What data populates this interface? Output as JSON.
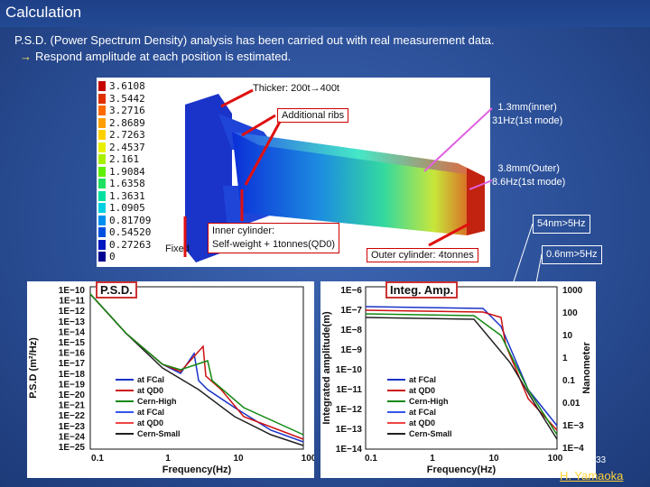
{
  "slide": {
    "title": "Calculation",
    "desc_line1": "P.S.D. (Power Spectrum Density) analysis has been carried out with real measurement data.",
    "desc_arrow": "→",
    "desc_line2": "Respond amplitude at each position is estimated.",
    "page_number": "33",
    "author": "H. Yamaoka"
  },
  "fem": {
    "legend_values": [
      "3.6108",
      "3.5442",
      "3.2716",
      "2.8689",
      "2.7263",
      "2.4537",
      "2.161",
      "1.9084",
      "1.6358",
      "1.3631",
      "1.0905",
      "0.81709",
      "0.54520",
      "0.27263",
      "0"
    ],
    "legend_colors": [
      "#c40000",
      "#e03000",
      "#ff6a00",
      "#ff9e00",
      "#ffd000",
      "#e8f000",
      "#a8f000",
      "#5ef000",
      "#20e060",
      "#00e0a0",
      "#00d0e0",
      "#0090f0",
      "#0050e0",
      "#0018c0",
      "#000090"
    ],
    "label_thicker": "Thicker: 200t→400t",
    "label_ribs": "Additional ribs",
    "label_inner_cyl_1": "Inner cylinder:",
    "label_inner_cyl_2": "Self-weight + 1tonnes(QD0)",
    "label_outer_cyl": "Outer cylinder: 4tonnes",
    "label_fixed": "Fixed",
    "callout_inner": "1.3mm(inner)\n31Hz(1st mode)",
    "callout_inner_l1": "1.3mm(inner)",
    "callout_inner_l2": "31Hz(1st mode)",
    "callout_outer_l1": "3.8mm(Outer)",
    "callout_outer_l2": "8.6Hz(1st mode)",
    "callout_54": "54nm>5Hz",
    "callout_06": "0.6nm>5Hz"
  },
  "psd_plot": {
    "tag": "P.S.D.",
    "ylabel": "P.S.D (m²/Hz)",
    "xlabel": "Frequency(Hz)",
    "y_ticks": [
      "1E−10",
      "1E−11",
      "1E−12",
      "1E−13",
      "1E−14",
      "1E−15",
      "1E−16",
      "1E−17",
      "1E−18",
      "1E−19",
      "1E−20",
      "1E−21",
      "1E−22",
      "1E−23",
      "1E−24",
      "1E−25"
    ],
    "x_ticks": [
      "0.1",
      "1",
      "10",
      "100"
    ],
    "legend": [
      "at FCal",
      "at QD0",
      "Cern-High",
      "at FCal",
      "at QD0",
      "Cern-Small"
    ]
  },
  "int_plot": {
    "tag": "Integ. Amp.",
    "ylabel": "Integrated amplitude(m)",
    "y2label": "Nanometer",
    "xlabel": "Frequency(Hz)",
    "y_ticks": [
      "1E−6",
      "1E−7",
      "1E−8",
      "1E−9",
      "1E−10",
      "1E−11",
      "1E−12",
      "1E−13",
      "1E−14"
    ],
    "y2_ticks": [
      "1000",
      "100",
      "10",
      "1",
      "0.1",
      "0.01",
      "1E−3",
      "1E−4"
    ],
    "x_ticks": [
      "0.1",
      "1",
      "10",
      "100"
    ],
    "legend": [
      "at FCal",
      "at QD0",
      "Cern-High",
      "at FCal",
      "at QD0",
      "Cern-Small"
    ]
  },
  "colors": {
    "series": [
      "#1a33c8",
      "#cc1111",
      "#118811",
      "#3355ee",
      "#ee4444",
      "#222222"
    ]
  }
}
